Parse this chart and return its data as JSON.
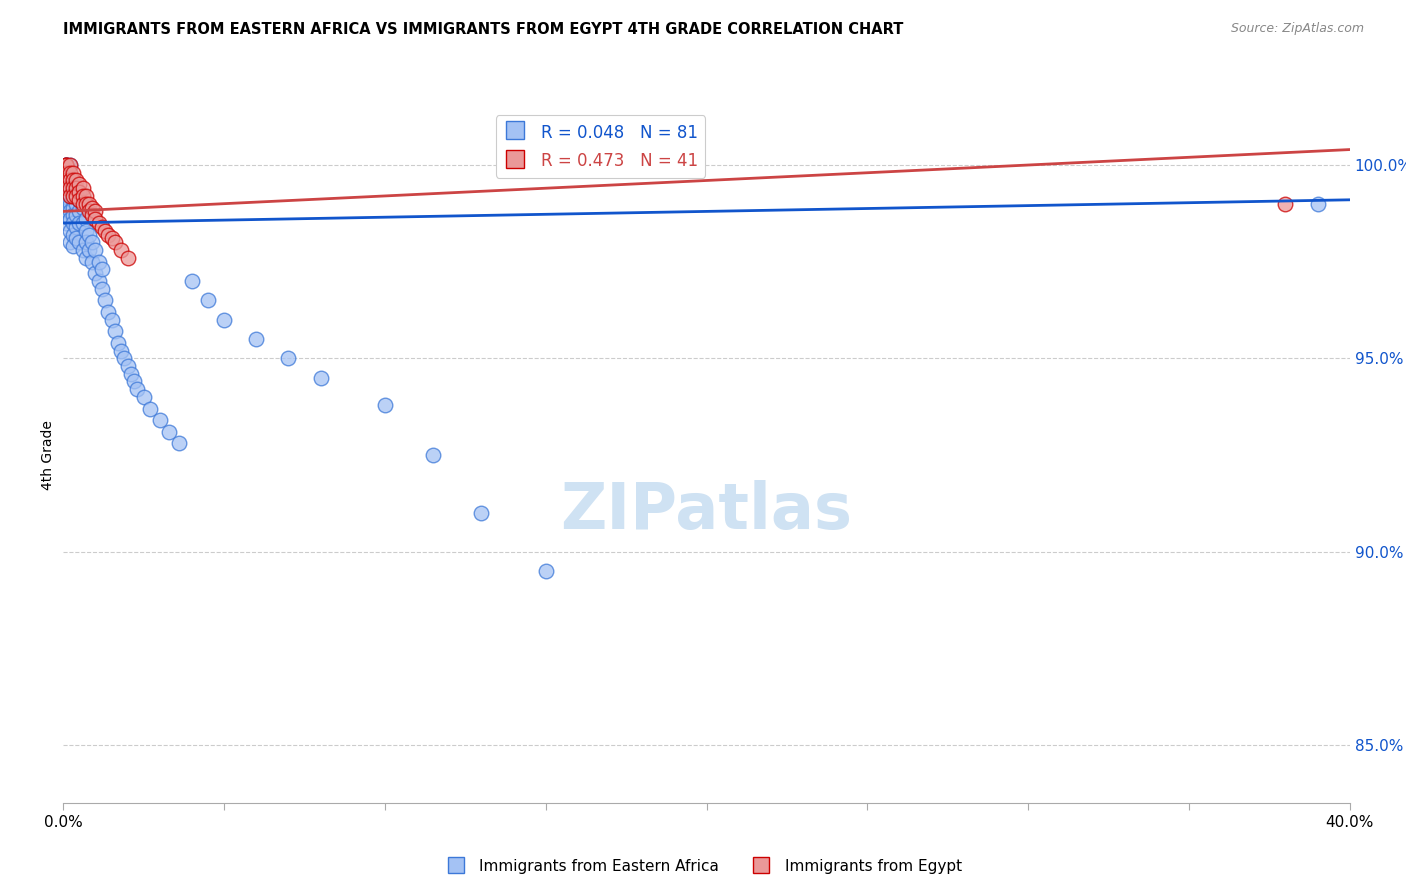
{
  "title": "IMMIGRANTS FROM EASTERN AFRICA VS IMMIGRANTS FROM EGYPT 4TH GRADE CORRELATION CHART",
  "source": "Source: ZipAtlas.com",
  "ylabel": "4th Grade",
  "yticks": [
    85.0,
    90.0,
    95.0,
    100.0
  ],
  "xlim": [
    0.0,
    0.4
  ],
  "ylim": [
    83.5,
    101.5
  ],
  "legend_label1": "Immigrants from Eastern Africa",
  "legend_label2": "Immigrants from Egypt",
  "blue_color": "#a4c2f4",
  "pink_color": "#ea9999",
  "blue_edge_color": "#3c78d8",
  "pink_edge_color": "#cc0000",
  "blue_line_color": "#1155cc",
  "pink_line_color": "#cc4444",
  "watermark_color": "#cfe2f3",
  "blue_scatter_x": [
    0.001,
    0.001,
    0.001,
    0.001,
    0.001,
    0.001,
    0.001,
    0.001,
    0.001,
    0.001,
    0.001,
    0.002,
    0.002,
    0.002,
    0.002,
    0.002,
    0.002,
    0.002,
    0.002,
    0.002,
    0.003,
    0.003,
    0.003,
    0.003,
    0.003,
    0.003,
    0.003,
    0.003,
    0.004,
    0.004,
    0.004,
    0.004,
    0.004,
    0.005,
    0.005,
    0.005,
    0.005,
    0.006,
    0.006,
    0.006,
    0.007,
    0.007,
    0.007,
    0.007,
    0.008,
    0.008,
    0.009,
    0.009,
    0.01,
    0.01,
    0.011,
    0.011,
    0.012,
    0.012,
    0.013,
    0.014,
    0.015,
    0.016,
    0.017,
    0.018,
    0.019,
    0.02,
    0.021,
    0.022,
    0.023,
    0.025,
    0.027,
    0.03,
    0.033,
    0.036,
    0.04,
    0.045,
    0.05,
    0.06,
    0.07,
    0.08,
    0.1,
    0.115,
    0.13,
    0.15,
    0.39
  ],
  "blue_scatter_y": [
    100.0,
    100.0,
    100.0,
    99.8,
    99.7,
    99.5,
    99.3,
    99.2,
    99.0,
    98.8,
    98.5,
    100.0,
    99.6,
    99.4,
    99.2,
    99.0,
    98.8,
    98.6,
    98.3,
    98.0,
    99.5,
    99.3,
    99.1,
    98.9,
    98.7,
    98.5,
    98.2,
    97.9,
    99.3,
    99.0,
    98.7,
    98.4,
    98.1,
    99.1,
    98.8,
    98.5,
    98.0,
    98.9,
    98.5,
    97.8,
    98.6,
    98.3,
    98.0,
    97.6,
    98.2,
    97.8,
    98.0,
    97.5,
    97.8,
    97.2,
    97.5,
    97.0,
    97.3,
    96.8,
    96.5,
    96.2,
    96.0,
    95.7,
    95.4,
    95.2,
    95.0,
    94.8,
    94.6,
    94.4,
    94.2,
    94.0,
    93.7,
    93.4,
    93.1,
    92.8,
    97.0,
    96.5,
    96.0,
    95.5,
    95.0,
    94.5,
    93.8,
    92.5,
    91.0,
    89.5,
    99.0
  ],
  "pink_scatter_x": [
    0.001,
    0.001,
    0.001,
    0.001,
    0.001,
    0.001,
    0.002,
    0.002,
    0.002,
    0.002,
    0.002,
    0.003,
    0.003,
    0.003,
    0.003,
    0.004,
    0.004,
    0.004,
    0.005,
    0.005,
    0.005,
    0.006,
    0.006,
    0.006,
    0.007,
    0.007,
    0.008,
    0.008,
    0.009,
    0.009,
    0.01,
    0.01,
    0.011,
    0.012,
    0.013,
    0.014,
    0.015,
    0.016,
    0.018,
    0.02,
    0.38
  ],
  "pink_scatter_y": [
    100.0,
    100.0,
    100.0,
    99.8,
    99.6,
    99.4,
    100.0,
    99.8,
    99.6,
    99.4,
    99.2,
    99.8,
    99.6,
    99.4,
    99.2,
    99.6,
    99.4,
    99.2,
    99.5,
    99.3,
    99.1,
    99.4,
    99.2,
    99.0,
    99.2,
    99.0,
    99.0,
    98.8,
    98.9,
    98.7,
    98.8,
    98.6,
    98.5,
    98.4,
    98.3,
    98.2,
    98.1,
    98.0,
    97.8,
    97.6,
    99.0
  ],
  "blue_trendline_x": [
    0.0,
    0.4
  ],
  "blue_trendline_y": [
    98.5,
    99.1
  ],
  "pink_trendline_x": [
    0.0,
    0.4
  ],
  "pink_trendline_y": [
    98.8,
    100.4
  ]
}
